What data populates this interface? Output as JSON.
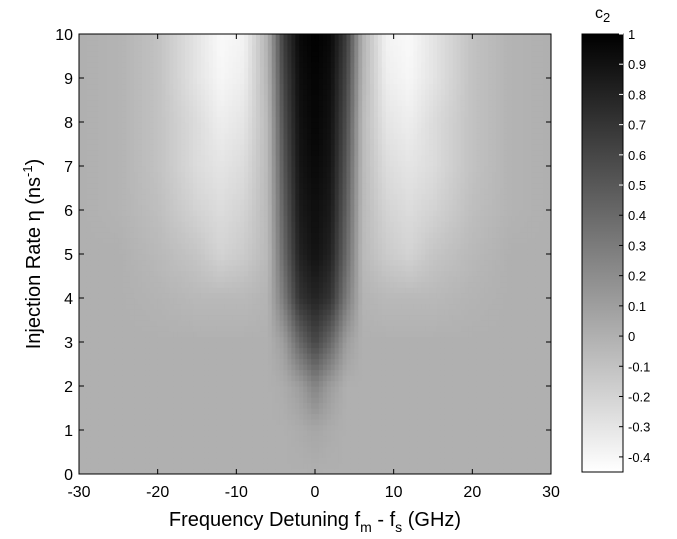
{
  "chart_data": {
    "type": "heatmap",
    "title": "",
    "xlabel": {
      "main": "Frequency Detuning ",
      "var1": "f",
      "sub1": "m",
      "mid": " - ",
      "var2": "f",
      "sub2": "s",
      "unit": "  (GHz)"
    },
    "ylabel": {
      "main": "Injection Rate ",
      "symbol": "η",
      "unit_open": "  (ns",
      "unit_sup": "-1",
      "unit_close": ")"
    },
    "xlim": [
      -30,
      30
    ],
    "ylim": [
      0,
      10
    ],
    "x_ticks": [
      "-30",
      "-20",
      "-10",
      "0",
      "10",
      "20",
      "30"
    ],
    "y_ticks": [
      "0",
      "1",
      "2",
      "3",
      "4",
      "5",
      "6",
      "7",
      "8",
      "9",
      "10"
    ],
    "colorbar": {
      "label": "c",
      "label_sub": "2",
      "range": [
        -0.45,
        1
      ],
      "ticks": [
        "1",
        "0.9",
        "0.8",
        "0.7",
        "0.6",
        "0.5",
        "0.4",
        "0.3",
        "0.2",
        "0.1",
        "0",
        "-0.1",
        "-0.2",
        "-0.3",
        "-0.4"
      ],
      "colors": [
        "#ffffff",
        "#000000"
      ]
    },
    "x": [
      -30,
      -25,
      -20,
      -15,
      -12,
      -9,
      -6,
      -4,
      -2,
      0,
      2,
      4,
      6,
      9,
      12,
      15,
      20,
      25,
      30
    ],
    "y": [
      0,
      1,
      2,
      3,
      4,
      5,
      6,
      7,
      8,
      9,
      10
    ],
    "z": [
      [
        0.0,
        0.0,
        0.0,
        0.0,
        0.0,
        0.0,
        0.0,
        0.0,
        0.0,
        0.0,
        0.0,
        0.0,
        0.0,
        0.0,
        0.0,
        0.0,
        0.0,
        0.0,
        0.0
      ],
      [
        0.0,
        0.0,
        0.0,
        0.0,
        0.0,
        0.0,
        0.0,
        0.0,
        0.02,
        0.05,
        0.02,
        0.0,
        0.0,
        0.0,
        0.0,
        0.0,
        0.0,
        0.0,
        0.0
      ],
      [
        0.0,
        0.0,
        0.0,
        0.0,
        0.0,
        0.0,
        0.0,
        0.02,
        0.1,
        0.25,
        0.1,
        0.0,
        0.0,
        0.0,
        0.0,
        0.0,
        0.0,
        0.0,
        0.0
      ],
      [
        0.0,
        0.0,
        0.0,
        0.0,
        0.0,
        0.0,
        0.0,
        0.1,
        0.4,
        0.6,
        0.4,
        0.1,
        0.0,
        0.0,
        0.0,
        0.0,
        0.0,
        0.0,
        0.0
      ],
      [
        0.0,
        0.0,
        -0.02,
        -0.05,
        -0.05,
        -0.05,
        -0.02,
        0.3,
        0.7,
        0.8,
        0.7,
        0.3,
        -0.02,
        -0.05,
        -0.05,
        -0.05,
        -0.02,
        0.0,
        0.0
      ],
      [
        0.0,
        0.0,
        -0.05,
        -0.12,
        -0.2,
        -0.15,
        -0.05,
        0.4,
        0.8,
        0.9,
        0.8,
        0.4,
        -0.05,
        -0.15,
        -0.2,
        -0.12,
        -0.05,
        0.0,
        0.0
      ],
      [
        0.0,
        -0.02,
        -0.08,
        -0.2,
        -0.25,
        -0.2,
        -0.05,
        0.45,
        0.85,
        0.92,
        0.85,
        0.45,
        -0.05,
        -0.2,
        -0.25,
        -0.2,
        -0.08,
        -0.02,
        0.0
      ],
      [
        0.0,
        -0.02,
        -0.1,
        -0.25,
        -0.3,
        -0.25,
        -0.05,
        0.5,
        0.88,
        0.95,
        0.88,
        0.5,
        -0.05,
        -0.25,
        -0.3,
        -0.25,
        -0.1,
        -0.02,
        0.0
      ],
      [
        0.0,
        -0.02,
        -0.1,
        -0.25,
        -0.35,
        -0.3,
        -0.05,
        0.55,
        0.9,
        0.97,
        0.9,
        0.55,
        -0.05,
        -0.3,
        -0.35,
        -0.25,
        -0.1,
        -0.02,
        0.0
      ],
      [
        0.0,
        -0.02,
        -0.1,
        -0.3,
        -0.4,
        -0.35,
        -0.02,
        0.6,
        0.92,
        0.98,
        0.92,
        0.6,
        -0.02,
        -0.35,
        -0.4,
        -0.3,
        -0.1,
        -0.02,
        0.0
      ],
      [
        0.0,
        -0.02,
        -0.1,
        -0.3,
        -0.42,
        -0.38,
        0.0,
        0.65,
        0.95,
        1.0,
        0.95,
        0.65,
        0.0,
        -0.38,
        -0.42,
        -0.3,
        -0.1,
        -0.02,
        0.0
      ]
    ]
  }
}
